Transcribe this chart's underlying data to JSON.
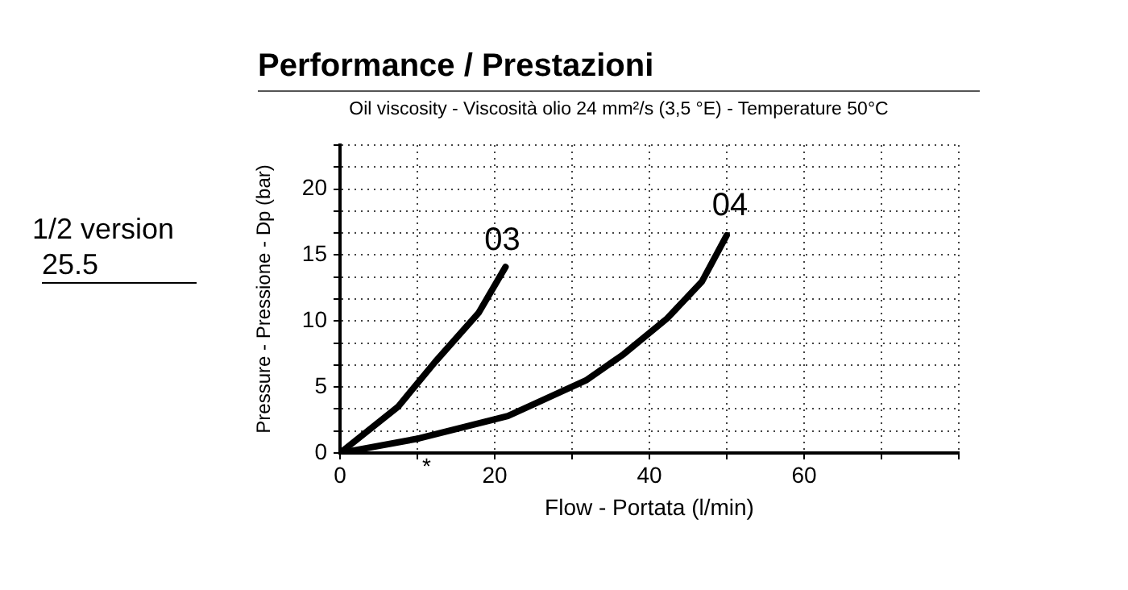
{
  "chart_data": {
    "type": "line",
    "title": "Performance / Prestazioni",
    "subtitle": "Oil viscosity - Viscosità olio 24 mm²/s (3,5 °E) - Temperature 50°C",
    "xlabel": "Flow - Portata (l/min)",
    "ylabel": "Pressure - Pressione - Dp (bar)",
    "annotations": [
      "1/2 version",
      "25.5",
      "*"
    ],
    "series": [
      {
        "name": "03",
        "color": "#000000",
        "x": [
          0,
          7.5,
          12.3,
          17.9,
          21.4
        ],
        "values": [
          0,
          3.5,
          6.9,
          10.6,
          14.1
        ]
      },
      {
        "name": "04",
        "color": "#000000",
        "x": [
          0,
          10.2,
          21.7,
          31.8,
          36.7,
          42.3,
          46.8,
          50
        ],
        "values": [
          0,
          1.1,
          2.8,
          5.5,
          7.5,
          10.2,
          13,
          16.5
        ]
      }
    ],
    "xlim": [
      0,
      80
    ],
    "xticks": [
      0,
      {
        "value": 10,
        "label": null
      },
      20,
      {
        "value": 30,
        "label": null
      },
      40,
      {
        "value": 50,
        "label": null
      },
      60,
      {
        "value": 70,
        "label": null
      },
      {
        "value": 80,
        "label": null
      }
    ],
    "ylim": [
      0,
      23.33
    ],
    "yticks": [
      0,
      {
        "value": 1.67,
        "label": null
      },
      {
        "value": 3.33,
        "label": null
      },
      5,
      {
        "value": 6.67,
        "label": null
      },
      {
        "value": 8.33,
        "label": null
      },
      10,
      {
        "value": 11.67,
        "label": null
      },
      {
        "value": 13.33,
        "label": null
      },
      15,
      {
        "value": 16.67,
        "label": null
      },
      {
        "value": 18.33,
        "label": null
      },
      20,
      {
        "value": 21.67,
        "label": null
      },
      {
        "value": 23.33,
        "label": null
      }
    ],
    "grid": true,
    "legend": false,
    "marker": "none",
    "line_style": "solid"
  }
}
